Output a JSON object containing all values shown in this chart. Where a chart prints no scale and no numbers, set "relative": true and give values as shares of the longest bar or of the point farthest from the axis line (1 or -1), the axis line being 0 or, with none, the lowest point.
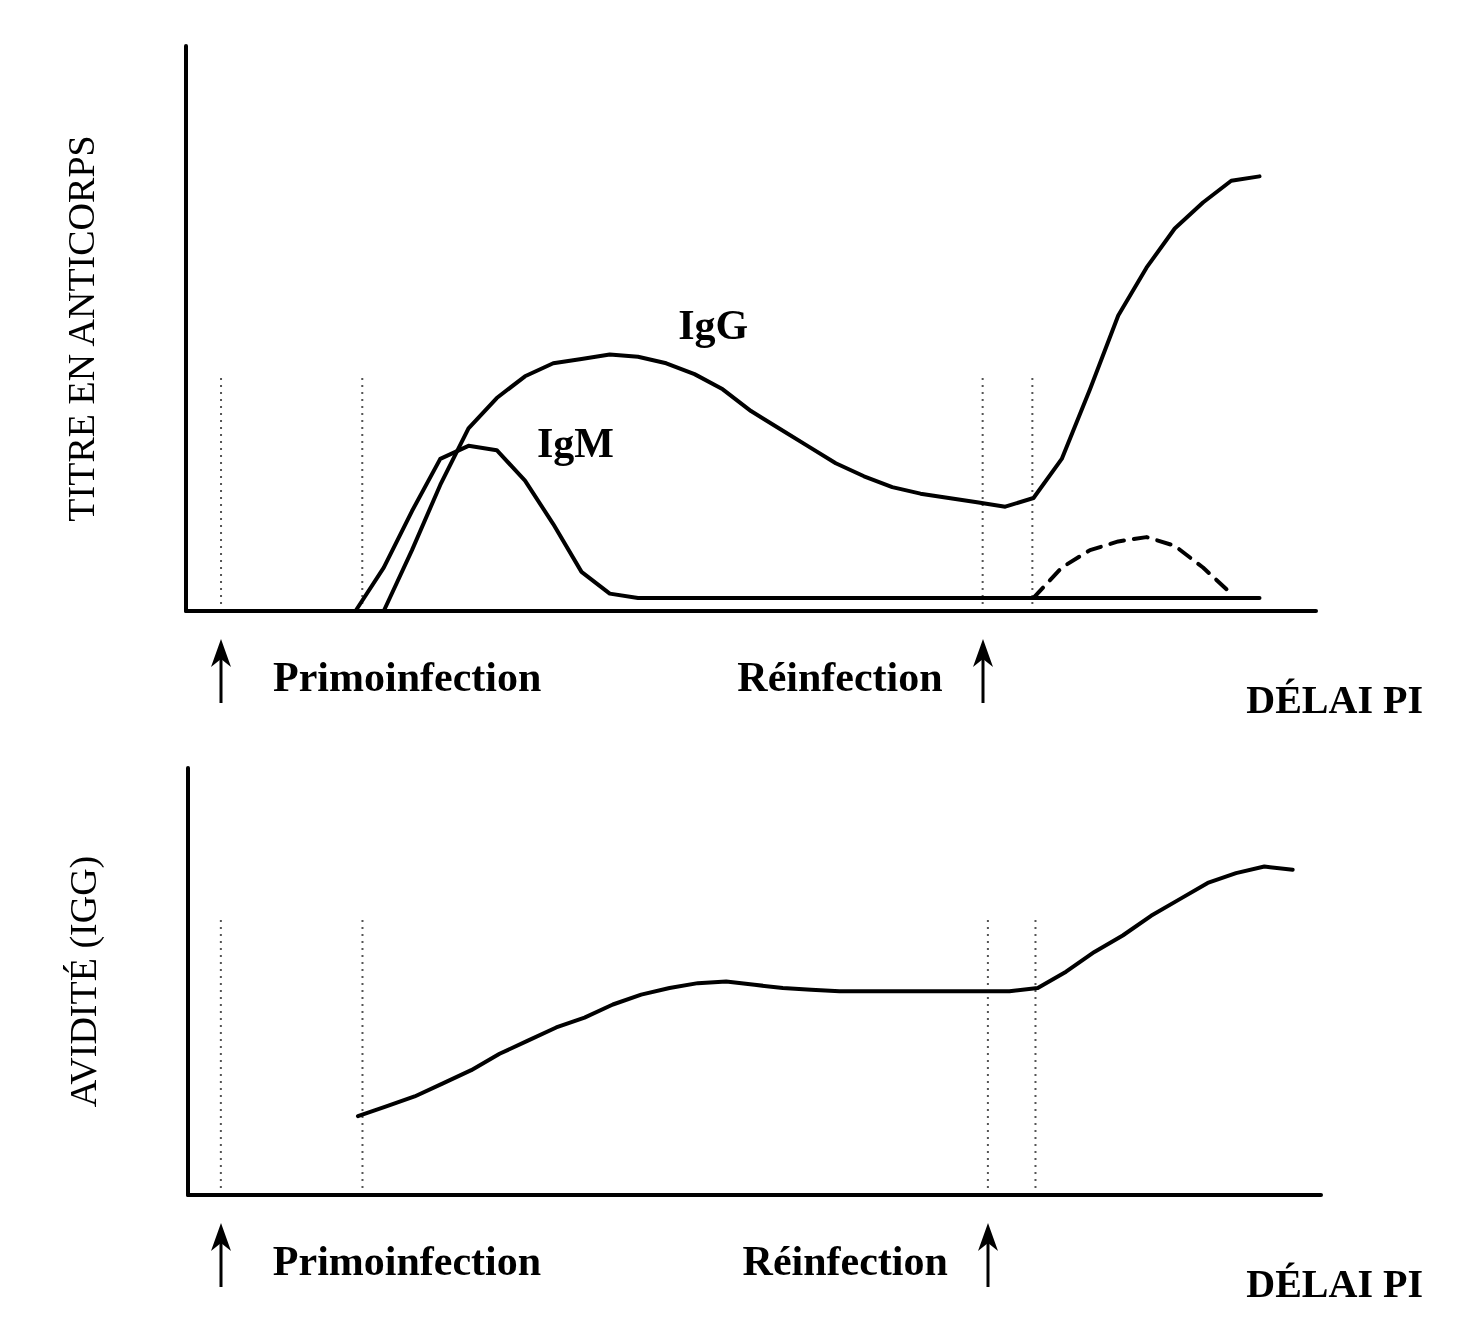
{
  "chart_data": [
    {
      "type": "line",
      "relative": true,
      "ylabel": "TITRE EN ANTICORPS",
      "xlabel": "DÉLAI PI",
      "grid": false,
      "legend": false,
      "marker": "none",
      "line_style": "solid",
      "annotations": [
        "Primoinfection",
        "Réinfection"
      ],
      "categories": [
        null,
        null,
        null,
        null,
        null,
        null,
        null,
        null,
        null,
        null,
        null,
        null,
        null,
        null,
        null,
        null,
        null,
        null,
        null,
        null,
        null,
        null,
        null,
        null,
        null,
        null,
        null,
        null,
        null,
        null,
        null,
        null,
        null,
        null,
        null,
        null,
        null,
        null,
        null,
        null,
        null
      ],
      "series": [
        {
          "name": "IgG",
          "color": "#000000",
          "values": [
            null,
            null,
            null,
            null,
            null,
            null,
            null,
            0,
            0.14,
            0.29,
            0.42,
            0.49,
            0.54,
            0.57,
            0.58,
            0.59,
            0.585,
            0.57,
            0.545,
            0.51,
            0.46,
            0.42,
            0.38,
            0.34,
            0.31,
            0.285,
            0.27,
            0.26,
            0.25,
            0.24,
            0.26,
            0.35,
            0.51,
            0.68,
            0.79,
            0.88,
            0.94,
            0.99,
            1.0,
            null,
            null
          ]
        },
        {
          "name": "IgM",
          "color": "#000000",
          "values": [
            null,
            null,
            null,
            null,
            null,
            null,
            0,
            0.1,
            0.23,
            0.35,
            0.38,
            0.37,
            0.3,
            0.2,
            0.09,
            0.04,
            0.03,
            0.03,
            0.03,
            0.03,
            0.03,
            0.03,
            0.03,
            0.03,
            0.03,
            0.03,
            0.03,
            0.03,
            0.03,
            0.03,
            0.03,
            0.03,
            0.03,
            0.03,
            0.03,
            0.03,
            0.03,
            0.03,
            0.03,
            null,
            null
          ]
        },
        {
          "color": "#000000",
          "line_style": "dashed",
          "values": [
            null,
            null,
            null,
            null,
            null,
            null,
            null,
            null,
            null,
            null,
            null,
            null,
            null,
            null,
            null,
            null,
            null,
            null,
            null,
            null,
            null,
            null,
            null,
            null,
            null,
            null,
            null,
            null,
            null,
            null,
            0.03,
            0.1,
            0.14,
            0.16,
            0.17,
            0.15,
            0.1,
            0.04,
            null,
            null,
            null
          ]
        }
      ]
    },
    {
      "type": "line",
      "relative": true,
      "ylabel": "AVIDITÉ (IGG)",
      "xlabel": "DÉLAI PI",
      "grid": false,
      "legend": false,
      "marker": "none",
      "line_style": "solid",
      "annotations": [
        "Primoinfection",
        "Réinfection"
      ],
      "categories": [
        null,
        null,
        null,
        null,
        null,
        null,
        null,
        null,
        null,
        null,
        null,
        null,
        null,
        null,
        null,
        null,
        null,
        null,
        null,
        null,
        null,
        null,
        null,
        null,
        null,
        null,
        null,
        null,
        null,
        null,
        null,
        null,
        null,
        null,
        null,
        null,
        null,
        null,
        null,
        null,
        null
      ],
      "series": [
        {
          "color": "#000000",
          "values": [
            null,
            null,
            null,
            null,
            null,
            null,
            0.24,
            0.27,
            0.3,
            0.34,
            0.38,
            0.43,
            0.47,
            0.51,
            0.54,
            0.58,
            0.61,
            0.63,
            0.645,
            0.65,
            0.64,
            0.63,
            0.625,
            0.62,
            0.62,
            0.62,
            0.62,
            0.62,
            0.62,
            0.62,
            0.63,
            0.68,
            0.74,
            0.79,
            0.85,
            0.9,
            0.95,
            0.98,
            1.0,
            0.99,
            null
          ]
        }
      ]
    }
  ]
}
